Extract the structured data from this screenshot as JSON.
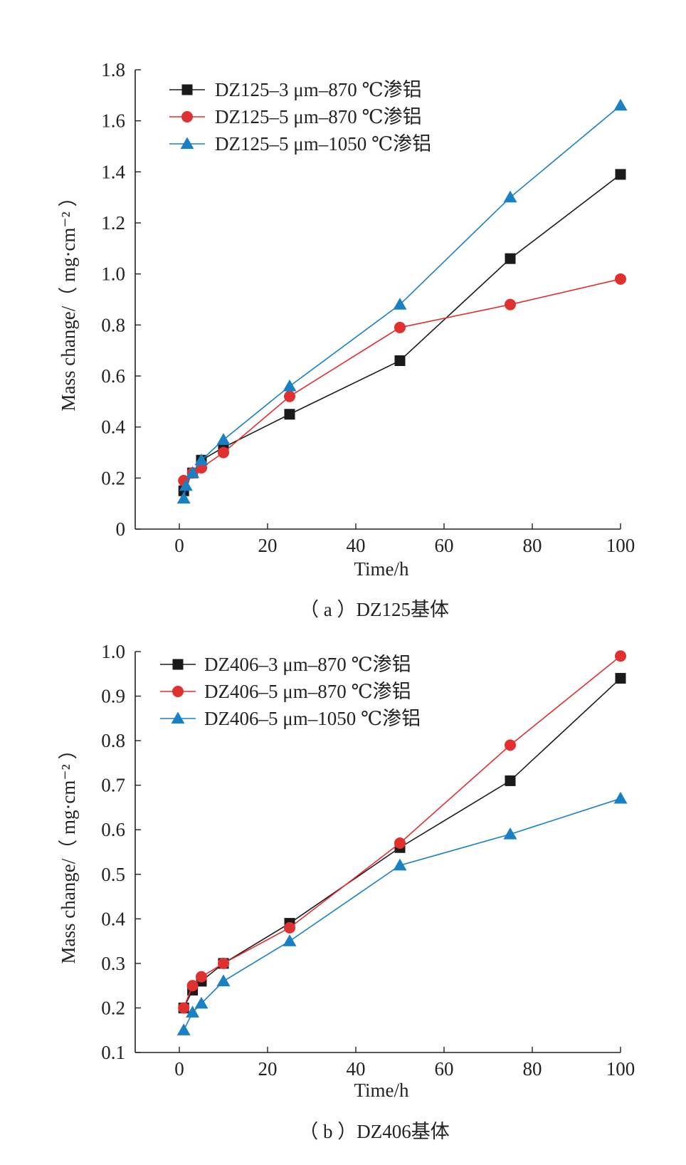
{
  "chart_data": [
    {
      "type": "line",
      "caption": "（ a ）DZ125基体",
      "xlabel": "Time/h",
      "ylabel": "Mass change/（ mg·cm⁻² ）",
      "xlim": [
        -10,
        100
      ],
      "ylim": [
        0,
        1.8
      ],
      "xticks": [
        "0",
        "20",
        "40",
        "60",
        "80",
        "100"
      ],
      "yticks": [
        "0",
        "0.2",
        "0.4",
        "0.6",
        "0.8",
        "1.0",
        "1.2",
        "1.4",
        "1.6",
        "1.8"
      ],
      "legend_position": "top-left",
      "series": [
        {
          "name": "DZ125–3 μm–870 ℃渗铝",
          "color": "#1a1a1a",
          "marker": "square",
          "x": [
            1,
            3,
            5,
            10,
            25,
            50,
            75,
            100
          ],
          "y": [
            0.15,
            0.22,
            0.27,
            0.32,
            0.45,
            0.66,
            1.06,
            1.39
          ]
        },
        {
          "name": "DZ125–5 μm–870 ℃渗铝",
          "color": "#e03030",
          "marker": "circle",
          "x": [
            1,
            3,
            5,
            10,
            25,
            50,
            75,
            100
          ],
          "y": [
            0.19,
            0.22,
            0.24,
            0.3,
            0.52,
            0.79,
            0.88,
            0.98
          ]
        },
        {
          "name": "DZ125–5 μm–1050 ℃渗铝",
          "color": "#1a80c4",
          "marker": "triangle",
          "x": [
            1,
            1.5,
            3,
            5,
            10,
            25,
            50,
            75,
            100
          ],
          "y": [
            0.12,
            0.17,
            0.22,
            0.27,
            0.35,
            0.56,
            0.88,
            1.3,
            1.66
          ]
        }
      ]
    },
    {
      "type": "line",
      "caption": "（ b ）DZ406基体",
      "xlabel": "Time/h",
      "ylabel": "Mass change/（ mg·cm⁻² ）",
      "xlim": [
        -10,
        100
      ],
      "ylim": [
        0.1,
        1.0
      ],
      "xticks": [
        "0",
        "20",
        "40",
        "60",
        "80",
        "100"
      ],
      "yticks": [
        "0.1",
        "0.2",
        "0.3",
        "0.4",
        "0.5",
        "0.6",
        "0.7",
        "0.8",
        "0.9",
        "1.0"
      ],
      "legend_position": "top-left",
      "series": [
        {
          "name": "DZ406–3 μm–870 ℃渗铝",
          "color": "#1a1a1a",
          "marker": "square",
          "x": [
            1,
            3,
            5,
            10,
            25,
            50,
            75,
            100
          ],
          "y": [
            0.2,
            0.24,
            0.26,
            0.3,
            0.39,
            0.56,
            0.71,
            0.94
          ]
        },
        {
          "name": "DZ406–5 μm–870 ℃渗铝",
          "color": "#e03030",
          "marker": "circle",
          "x": [
            1,
            3,
            5,
            10,
            25,
            50,
            75,
            100
          ],
          "y": [
            0.2,
            0.25,
            0.27,
            0.3,
            0.38,
            0.57,
            0.79,
            0.99
          ]
        },
        {
          "name": "DZ406–5 μm–1050 ℃渗铝",
          "color": "#1a80c4",
          "marker": "triangle",
          "x": [
            1,
            3,
            5,
            10,
            25,
            50,
            75,
            100
          ],
          "y": [
            0.15,
            0.19,
            0.21,
            0.26,
            0.35,
            0.52,
            0.59,
            0.67
          ]
        }
      ]
    }
  ]
}
